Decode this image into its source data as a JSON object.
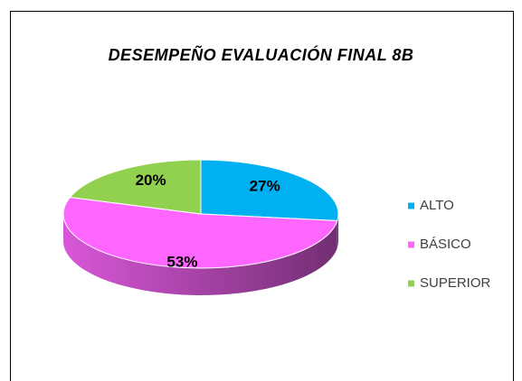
{
  "chart_data": {
    "type": "pie",
    "title": "DESEMPEÑO EVALUACIÓN FINAL 8B",
    "categories": [
      "ALTO",
      "BÁSICO",
      "SUPERIOR"
    ],
    "values": [
      27,
      53,
      20
    ],
    "value_labels": [
      "27%",
      "53%",
      "20%"
    ],
    "colors": [
      "#00b0f0",
      "#ff66ff",
      "#92d050"
    ],
    "legend": "right"
  }
}
